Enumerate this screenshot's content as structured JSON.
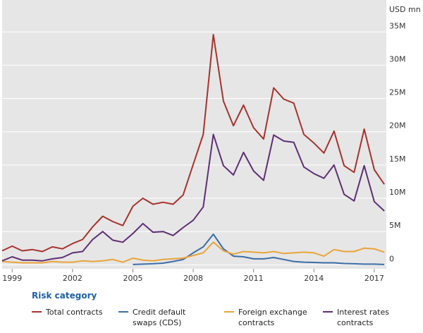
{
  "chart_data": {
    "type": "line",
    "y_label": "USD mn",
    "legend_title": "Risk category",
    "x": [
      1998.5,
      1999,
      1999.5,
      2000,
      2000.5,
      2001,
      2001.5,
      2002,
      2002.5,
      2003,
      2003.5,
      2004,
      2004.5,
      2005,
      2005.5,
      2006,
      2006.5,
      2007,
      2007.5,
      2008,
      2008.5,
      2009,
      2009.5,
      2010,
      2010.5,
      2011,
      2011.5,
      2012,
      2012.5,
      2013,
      2013.5,
      2014,
      2014.5,
      2015,
      2015.5,
      2016,
      2016.5,
      2017,
      2017.5
    ],
    "xlim": [
      1998.5,
      2017.6
    ],
    "xticks": [
      1999,
      2002,
      2005,
      2008,
      2011,
      2014,
      2017
    ],
    "ylim": [
      -600000,
      39800000
    ],
    "yticks": [
      0,
      {
        "value": 5000000,
        "label": "5M"
      },
      {
        "value": 10000000,
        "label": "10M"
      },
      {
        "value": 15000000,
        "label": "15M"
      },
      {
        "value": 20000000,
        "label": "20M"
      },
      {
        "value": 25000000,
        "label": "25M"
      },
      {
        "value": 30000000,
        "label": "30M"
      },
      {
        "value": 35000000,
        "label": "35M"
      }
    ],
    "grid": true,
    "series": [
      {
        "name": "Total contracts",
        "color": "#a8322d",
        "values": [
          2100000,
          2800000,
          2100000,
          2300000,
          2000000,
          2700000,
          2400000,
          3200000,
          3800000,
          5700000,
          7300000,
          6500000,
          5900000,
          8800000,
          10000000,
          9100000,
          9400000,
          9100000,
          10500000,
          15100000,
          19600000,
          34600000,
          24600000,
          20900000,
          24000000,
          20600000,
          18900000,
          26600000,
          24900000,
          24300000,
          19600000,
          18300000,
          16800000,
          20100000,
          14900000,
          13900000,
          20400000,
          14300000,
          12100000
        ]
      },
      {
        "name": "Credit default swaps (CDS)",
        "color": "#3a6ea8",
        "values": [
          null,
          null,
          null,
          null,
          null,
          null,
          null,
          null,
          null,
          null,
          null,
          null,
          null,
          50000,
          100000,
          150000,
          250000,
          500000,
          800000,
          1800000,
          2700000,
          4600000,
          2400000,
          1300000,
          1200000,
          900000,
          900000,
          1100000,
          800000,
          500000,
          400000,
          350000,
          300000,
          300000,
          200000,
          150000,
          100000,
          100000,
          50000
        ]
      },
      {
        "name": "Foreign exchange contracts",
        "color": "#eaa43a",
        "values": [
          500000,
          400000,
          300000,
          300000,
          300000,
          500000,
          400000,
          400000,
          600000,
          500000,
          600000,
          800000,
          400000,
          1000000,
          700000,
          600000,
          800000,
          900000,
          1000000,
          1400000,
          1800000,
          3400000,
          2100000,
          1600000,
          2000000,
          1900000,
          1800000,
          2000000,
          1700000,
          1800000,
          1900000,
          1800000,
          1300000,
          2300000,
          2000000,
          2000000,
          2500000,
          2400000,
          1900000
        ]
      },
      {
        "name": "Interest rates contracts",
        "color": "#5e2f74",
        "values": [
          600000,
          1200000,
          700000,
          700000,
          600000,
          900000,
          1100000,
          1800000,
          2000000,
          3800000,
          5000000,
          3700000,
          3400000,
          4700000,
          6200000,
          4900000,
          5000000,
          4400000,
          5600000,
          6700000,
          8700000,
          19600000,
          14900000,
          13500000,
          16900000,
          14100000,
          12700000,
          19500000,
          18600000,
          18400000,
          14700000,
          13700000,
          13000000,
          15000000,
          10600000,
          9600000,
          14900000,
          9500000,
          8100000
        ]
      }
    ]
  }
}
